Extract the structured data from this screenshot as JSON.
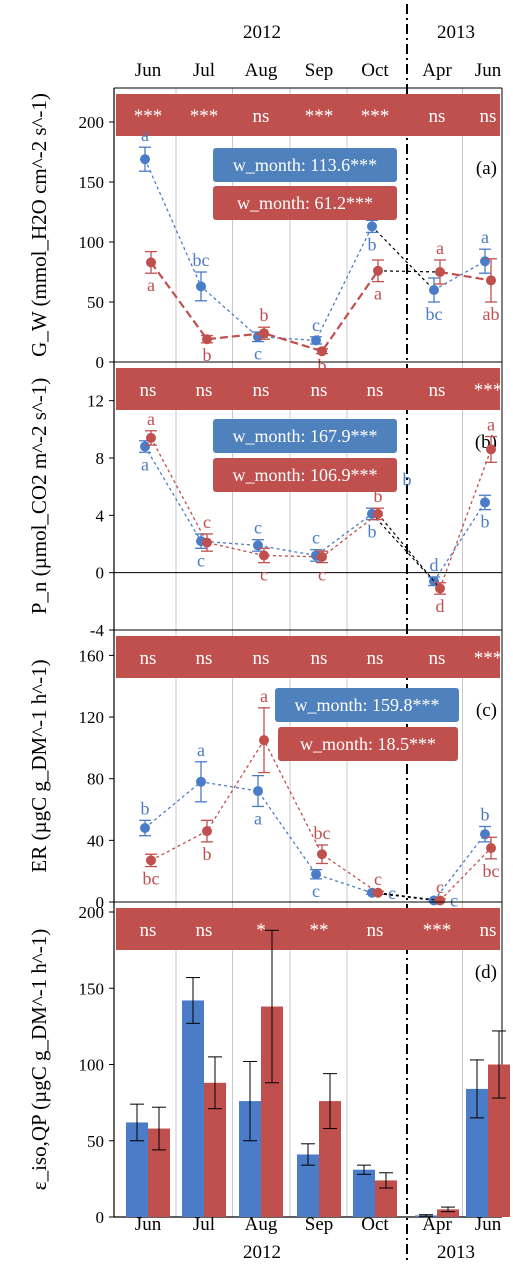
{
  "colors": {
    "blue": "#4a7cc7",
    "red": "#c0504d",
    "blue_box": "#4f81bd",
    "red_box": "#c0504d",
    "grid": "#c8c8c8",
    "axis": "#000000",
    "text": "#000000",
    "white": "#ffffff"
  },
  "chart_data": [
    {
      "panel": "a",
      "type": "line",
      "panel_label": "(a)",
      "ylabel": "G_W (mmol_H2O cm^-2 s^-1)",
      "categories": [
        "Jun",
        "Jul",
        "Aug",
        "Sep",
        "Oct",
        "Apr",
        "Jun"
      ],
      "years_top": [
        "2012",
        "2013"
      ],
      "ylim": [
        0,
        220
      ],
      "yticks": [
        0,
        50,
        100,
        150,
        200
      ],
      "significance": [
        "***",
        "***",
        "ns",
        "***",
        "***",
        "ns",
        "ns"
      ],
      "legend": [
        "w_month: 113.6***",
        "w_month:  61.2***"
      ],
      "series": [
        {
          "color": "blue",
          "values": [
            169,
            63,
            21,
            18,
            113,
            60,
            84
          ],
          "errors": [
            10,
            12,
            4,
            3,
            5,
            10,
            10
          ],
          "letters": [
            "a",
            "bc",
            "c",
            "c",
            "b",
            "bc",
            "a"
          ],
          "letter_pos": [
            "above",
            "above",
            "below",
            "above",
            "below",
            "below",
            "above"
          ]
        },
        {
          "color": "red",
          "values": [
            83,
            19,
            24,
            9,
            76,
            75,
            68
          ],
          "errors": [
            9,
            3,
            5,
            2,
            9,
            10,
            18
          ],
          "letters": [
            "a",
            "b",
            "b",
            "b",
            "a",
            "a",
            "ab"
          ],
          "letter_pos": [
            "below",
            "below",
            "above",
            "below",
            "below",
            "above",
            "below"
          ]
        }
      ]
    },
    {
      "panel": "b",
      "type": "line",
      "panel_label": "(b)",
      "ylabel": "P_n (µmol_CO2 m^-2 s^-1)",
      "categories": [
        "Jun",
        "Jul",
        "Aug",
        "Sep",
        "Oct",
        "Apr",
        "Jun"
      ],
      "ylim": [
        -4,
        14
      ],
      "yticks": [
        -4,
        0,
        4,
        8,
        12
      ],
      "significance": [
        "ns",
        "ns",
        "ns",
        "ns",
        "ns",
        "ns",
        "***"
      ],
      "legend": [
        "w_month: 167.9***",
        "w_month: 106.9***"
      ],
      "series": [
        {
          "color": "blue",
          "values": [
            8.8,
            2.2,
            1.9,
            1.2,
            4.1,
            -0.6,
            4.9
          ],
          "errors": [
            0.4,
            0.5,
            0.4,
            0.4,
            0.4,
            0.3,
            0.5
          ],
          "letters": [
            "a",
            "c",
            "c",
            "c",
            "b",
            "d",
            "b"
          ],
          "letter_pos": [
            "below",
            "below",
            "above",
            "above",
            "below",
            "above",
            "below"
          ]
        },
        {
          "color": "red",
          "values": [
            9.4,
            2.1,
            1.2,
            1.1,
            4.1,
            -1.1,
            8.6
          ],
          "errors": [
            0.5,
            0.6,
            0.5,
            0.4,
            0.4,
            0.4,
            0.9
          ],
          "letters": [
            "a",
            "c",
            "c",
            "c",
            "b",
            "d",
            "a"
          ],
          "letter_pos": [
            "above",
            "above",
            "below",
            "below",
            "above",
            "below",
            "above"
          ]
        }
      ],
      "extra_letter": {
        "text": "b",
        "x_index": 5,
        "y": 6.5,
        "color": "blue"
      }
    },
    {
      "panel": "c",
      "type": "line",
      "panel_label": "(c)",
      "ylabel": "ER (µgC g_DM^-1 h^-1)",
      "categories": [
        "Jun",
        "Jul",
        "Aug",
        "Sep",
        "Oct",
        "Apr",
        "Jun"
      ],
      "ylim": [
        0,
        170
      ],
      "yticks": [
        0,
        40,
        80,
        120,
        160
      ],
      "significance": [
        "ns",
        "ns",
        "ns",
        "ns",
        "ns",
        "ns",
        "***"
      ],
      "legend": [
        "w_month: 159.8***",
        "w_month: 18.5***"
      ],
      "series": [
        {
          "color": "blue",
          "values": [
            48,
            78,
            72,
            18,
            6,
            1,
            44
          ],
          "errors": [
            5,
            13,
            10,
            3,
            1,
            1,
            5
          ],
          "letters": [
            "b",
            "a",
            "a",
            "c",
            "c",
            "c",
            "b"
          ],
          "letter_pos": [
            "above",
            "above",
            "below",
            "below",
            "right",
            "right",
            "above"
          ]
        },
        {
          "color": "red",
          "values": [
            27,
            46,
            105,
            31,
            6,
            1,
            35
          ],
          "errors": [
            4,
            7,
            21,
            6,
            1,
            1,
            7
          ],
          "letters": [
            "bc",
            "b",
            "a",
            "bc",
            "c",
            "c",
            "bc"
          ],
          "letter_pos": [
            "below",
            "below",
            "above",
            "above",
            "above",
            "above",
            "below"
          ]
        }
      ]
    },
    {
      "panel": "d",
      "type": "bar",
      "panel_label": "(d)",
      "ylabel": "ε_iso,QP (µgC g_DM^-1 h^-1)",
      "categories": [
        "Jun",
        "Jul",
        "Aug",
        "Sep",
        "Oct",
        "Apr",
        "Jun"
      ],
      "years_bottom": [
        "2012",
        "2013"
      ],
      "ylim": [
        0,
        200
      ],
      "yticks": [
        0,
        50,
        100,
        150,
        200
      ],
      "significance": [
        "ns",
        "ns",
        "*",
        "**",
        "ns",
        "***",
        "ns"
      ],
      "series": [
        {
          "color": "blue",
          "values": [
            62,
            142,
            76,
            41,
            31,
            1,
            84
          ],
          "errors": [
            12,
            15,
            26,
            7,
            3,
            0.5,
            19
          ]
        },
        {
          "color": "red",
          "values": [
            58,
            88,
            138,
            76,
            24,
            5,
            100
          ],
          "errors": [
            14,
            17,
            50,
            18,
            5,
            1.5,
            22
          ]
        }
      ]
    }
  ]
}
